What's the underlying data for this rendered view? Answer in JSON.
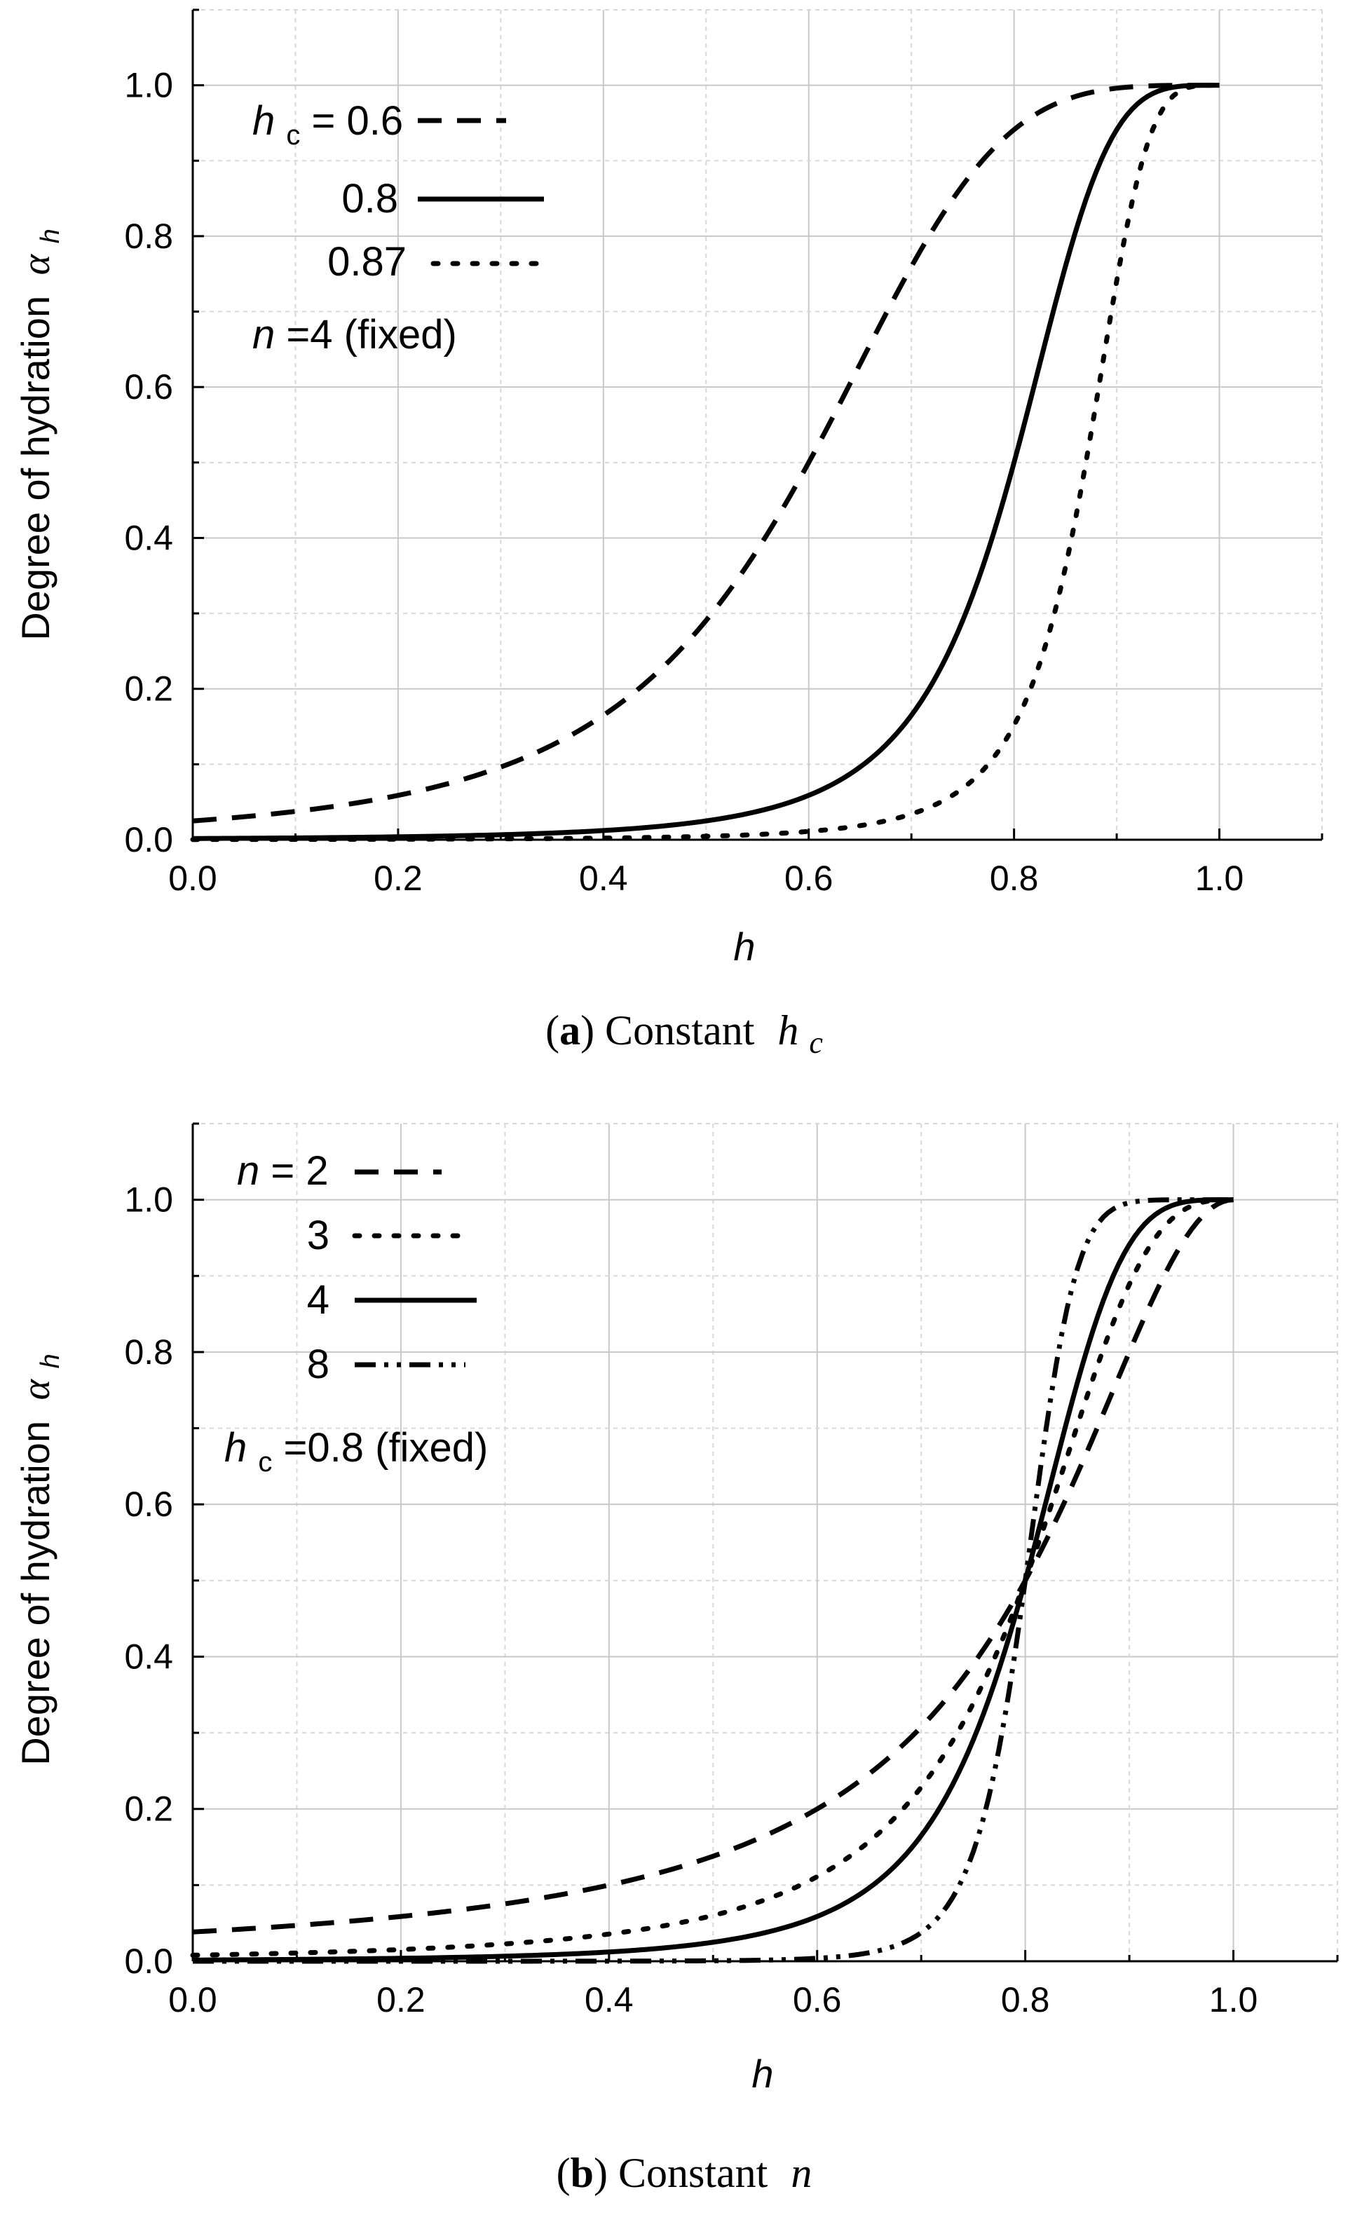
{
  "chart_data": [
    {
      "type": "line",
      "id": "a",
      "caption_letter": "a",
      "caption_text": "Constant",
      "caption_symbol": "h",
      "caption_sub": "c",
      "xlabel": "h",
      "ylabel": "Degree of hydration",
      "ylabel_symbol": "α",
      "ylabel_sub": "h",
      "xlim": [
        0.0,
        1.1
      ],
      "ylim": [
        0.0,
        1.1
      ],
      "xticks": [
        "0.0",
        "0.2",
        "0.4",
        "0.6",
        "0.8",
        "1.0"
      ],
      "yticks": [
        "0.0",
        "0.2",
        "0.4",
        "0.6",
        "0.8",
        "1.0"
      ],
      "grid": true,
      "legend_header": {
        "symbol": "h",
        "sub": "c",
        "eq": "="
      },
      "legend_note": {
        "symbol": "n",
        "text": "=4 (fixed)"
      },
      "series": [
        {
          "name": "0.6",
          "style": "dash",
          "hc": 0.6,
          "n": 4
        },
        {
          "name": "0.8",
          "style": "solid",
          "hc": 0.8,
          "n": 4
        },
        {
          "name": "0.87",
          "style": "dot",
          "hc": 0.87,
          "n": 4
        }
      ]
    },
    {
      "type": "line",
      "id": "b",
      "caption_letter": "b",
      "caption_text": "Constant",
      "caption_symbol": "n",
      "caption_sub": "",
      "xlabel": "h",
      "ylabel": "Degree of hydration",
      "ylabel_symbol": "α",
      "ylabel_sub": "h",
      "xlim": [
        0.0,
        1.1
      ],
      "ylim": [
        0.0,
        1.1
      ],
      "xticks": [
        "0.0",
        "0.2",
        "0.4",
        "0.6",
        "0.8",
        "1.0"
      ],
      "yticks": [
        "0.0",
        "0.2",
        "0.4",
        "0.6",
        "0.8",
        "1.0"
      ],
      "grid": true,
      "legend_header": {
        "symbol": "n",
        "sub": "",
        "eq": "="
      },
      "legend_note": {
        "symbol": "h",
        "sub": "c",
        "text": "=0.8 (fixed)"
      },
      "series": [
        {
          "name": "2",
          "style": "dash",
          "hc": 0.8,
          "n": 2
        },
        {
          "name": "3",
          "style": "dot",
          "hc": 0.8,
          "n": 3
        },
        {
          "name": "4",
          "style": "solid",
          "hc": 0.8,
          "n": 4
        },
        {
          "name": "8",
          "style": "dashdotdot",
          "hc": 0.8,
          "n": 8
        }
      ]
    }
  ]
}
